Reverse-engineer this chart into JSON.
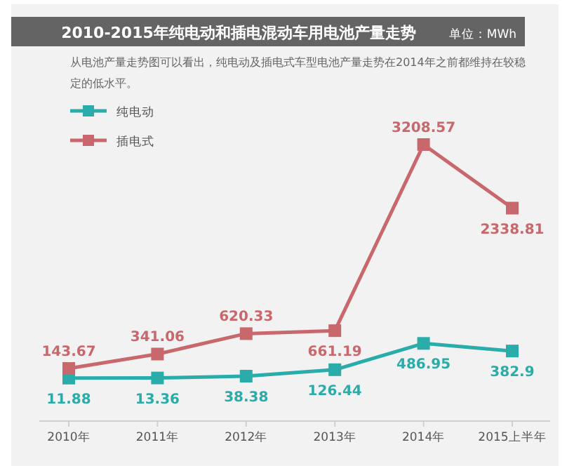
{
  "chart_data": {
    "type": "line",
    "title": "2010-2015年纯电动和插电混动车用电池产量走势",
    "subtitle": "单位：MWh",
    "annotations": [
      "从电池产量走势图可以看出，纯电动及插电式车型电池产量走势在2014年之前都维持在较稳定的低水平。"
    ],
    "categories": [
      "2010年",
      "2011年",
      "2012年",
      "2013年",
      "2014年",
      "2015上半年"
    ],
    "series": [
      {
        "name": "纯电动",
        "color": "#2aacaa",
        "values": [
          11.88,
          13.36,
          38.38,
          126.44,
          486.95,
          382.9
        ]
      },
      {
        "name": "插电式",
        "color": "#c8686c",
        "values": [
          143.67,
          341.06,
          620.33,
          661.19,
          3208.57,
          2338.81
        ]
      }
    ],
    "data_labels": true,
    "marker": "square",
    "line_style": "solid",
    "legend": "top left",
    "grid": false
  }
}
